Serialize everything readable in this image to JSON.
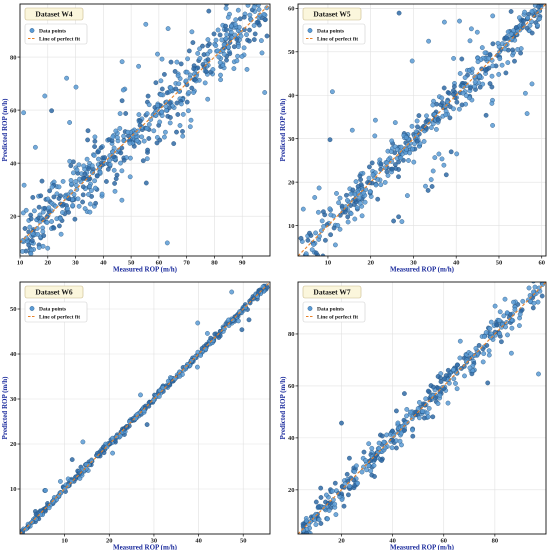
{
  "figure": {
    "colors": {
      "point_fill": "#5b9bd5",
      "point_fill_dark": "#2f6aa6",
      "point_stroke": "#1f4e79",
      "fit_line": "#e8822a",
      "grid": "#e1e1e1",
      "axis_title": "#1a2a9c",
      "title_box_fill": "#fbf6dc",
      "title_box_stroke": "#c9b98a"
    }
  },
  "chart_data": [
    {
      "type": "scatter",
      "title": "Dataset W4",
      "xlabel": "Measured ROP (m/h)",
      "ylabel": "Predicted ROP (m/h)",
      "xlim": [
        10,
        100
      ],
      "ylim": [
        5,
        100
      ],
      "xticks": [
        10,
        20,
        30,
        40,
        50,
        60,
        70,
        80,
        90
      ],
      "yticks": [
        20,
        40,
        60,
        80
      ],
      "legend": {
        "position": "top-left",
        "entries": [
          "Data points",
          "Line of perfect fit"
        ]
      },
      "grid": true,
      "points": {
        "count": 600,
        "spread": 5.5,
        "outlier_fraction": 0.13,
        "outlier_spread": 22
      },
      "perfect_fit": [
        [
          10,
          10
        ],
        [
          100,
          100
        ]
      ]
    },
    {
      "type": "scatter",
      "title": "Dataset W5",
      "xlabel": "Measured ROP (m/h)",
      "ylabel": "Predicted ROP (m/h)",
      "xlim": [
        3,
        61
      ],
      "ylim": [
        3,
        61
      ],
      "xticks": [
        10,
        20,
        30,
        40,
        50,
        60
      ],
      "yticks": [
        10,
        20,
        30,
        40,
        50,
        60
      ],
      "legend": {
        "position": "top-left",
        "entries": [
          "Data points",
          "Line of perfect fit"
        ]
      },
      "grid": true,
      "points": {
        "count": 500,
        "spread": 2.2,
        "outlier_fraction": 0.18,
        "outlier_spread": 12
      },
      "perfect_fit": [
        [
          3,
          3
        ],
        [
          61,
          61
        ]
      ]
    },
    {
      "type": "scatter",
      "title": "Dataset W6",
      "xlabel": "Measured ROP (m/h)",
      "ylabel": "Predicted ROP (m/h)",
      "xlim": [
        0,
        56
      ],
      "ylim": [
        0,
        56
      ],
      "xticks": [
        10,
        20,
        30,
        40,
        50
      ],
      "yticks": [
        10,
        20,
        30,
        40,
        50
      ],
      "legend": {
        "position": "top-left",
        "entries": [
          "Data points",
          "Line of perfect fit"
        ]
      },
      "grid": true,
      "points": {
        "count": 420,
        "spread": 0.45,
        "outlier_fraction": 0.03,
        "outlier_spread": 3
      },
      "perfect_fit": [
        [
          0,
          0
        ],
        [
          56,
          56
        ]
      ]
    },
    {
      "type": "scatter",
      "title": "Dataset W7",
      "xlabel": "Measured ROP (m/h)",
      "ylabel": "Predicted ROP (m/h)",
      "xlim": [
        3,
        100
      ],
      "ylim": [
        3,
        100
      ],
      "xticks": [
        20,
        40,
        60,
        80
      ],
      "yticks": [
        20,
        40,
        60,
        80
      ],
      "legend": {
        "position": "top-left",
        "entries": [
          "Data points",
          "Line of perfect fit"
        ]
      },
      "grid": true,
      "points": {
        "count": 420,
        "spread": 2.8,
        "outlier_fraction": 0.08,
        "outlier_spread": 12
      },
      "perfect_fit": [
        [
          3,
          3
        ],
        [
          100,
          100
        ]
      ]
    }
  ]
}
